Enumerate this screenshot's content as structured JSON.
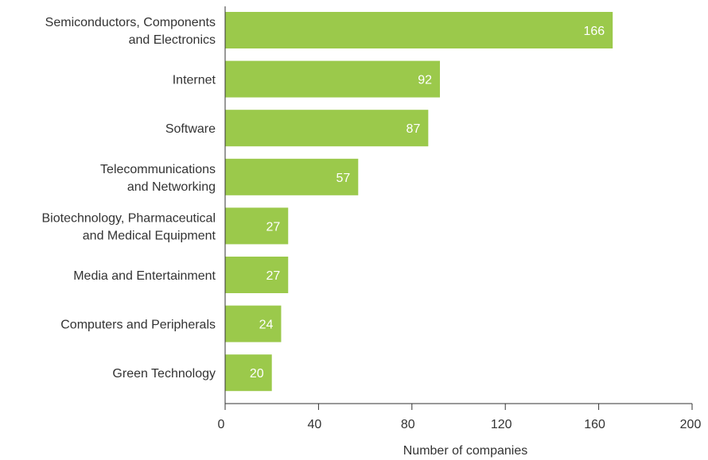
{
  "chart_data": {
    "type": "bar",
    "orientation": "horizontal",
    "categories": [
      [
        "Semiconductors, Components",
        "and Electronics"
      ],
      [
        "Internet"
      ],
      [
        "Software"
      ],
      [
        "Telecommunications",
        "and Networking"
      ],
      [
        "Biotechnology, Pharmaceutical",
        "and Medical Equipment"
      ],
      [
        "Media and Entertainment"
      ],
      [
        "Computers and Peripherals"
      ],
      [
        "Green Technology"
      ]
    ],
    "values": [
      166,
      92,
      87,
      57,
      27,
      27,
      24,
      20
    ],
    "value_labels": [
      "166",
      "92",
      "87",
      "57",
      "27",
      "27",
      "24",
      "20"
    ],
    "xlabel": "Number of companies",
    "xlim": [
      0,
      200
    ],
    "xticks": [
      0,
      40,
      80,
      120,
      160,
      200
    ],
    "xtick_labels": [
      "0",
      "40",
      "80",
      "120",
      "160",
      "200"
    ],
    "grid": false,
    "legend": "none",
    "bar_color": "#9bc94b",
    "label_color": "#ffffff",
    "text_color": "#333333"
  }
}
